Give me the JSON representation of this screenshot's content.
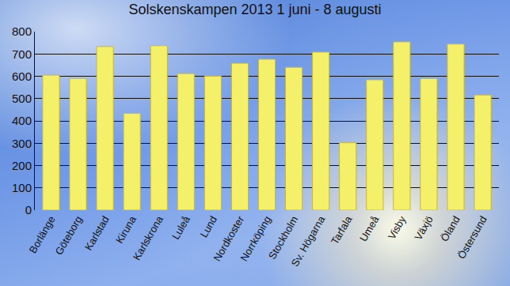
{
  "chart_data": {
    "type": "bar",
    "title": "Solskenskampen 2013 1 juni - 8 augusti",
    "categories": [
      "Borlänge",
      "Göteborg",
      "Karlstad",
      "Kiruna",
      "Karlskrona",
      "Luleå",
      "Lund",
      "Nordkoster",
      "Norrköping",
      "Stockholm",
      "Sv. Högarna",
      "Tarfala",
      "Umeå",
      "Visby",
      "Växjö",
      "Öland",
      "Östersund"
    ],
    "values": [
      605,
      590,
      733,
      434,
      737,
      612,
      601,
      658,
      676,
      640,
      708,
      302,
      584,
      754,
      590,
      744,
      516
    ],
    "color": "#f4f06a",
    "ylim": [
      0,
      800
    ],
    "yticks": [
      0,
      100,
      200,
      300,
      400,
      500,
      600,
      700,
      800
    ],
    "grid": true
  }
}
